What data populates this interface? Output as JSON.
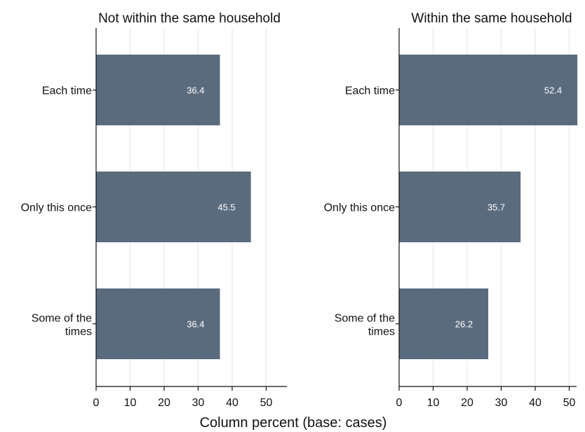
{
  "chart_data": {
    "type": "bar",
    "orientation": "horizontal",
    "categories": [
      "Each time",
      "Only this once",
      "Some of the times"
    ],
    "xlabel": "Column percent (base: cases)",
    "xlim": [
      0,
      56
    ],
    "xticks": [
      0,
      10,
      20,
      30,
      40,
      50
    ],
    "grid": true,
    "bar_color": "#5a6b7e",
    "panels": [
      {
        "title": "Not within the same household",
        "values": [
          36.4,
          45.5,
          36.4
        ],
        "labels": [
          "36.4",
          "45.5",
          "36.4"
        ]
      },
      {
        "title": "Within the same household",
        "values": [
          52.4,
          35.7,
          26.2
        ],
        "labels": [
          "52.4",
          "35.7",
          "26.2"
        ]
      }
    ]
  }
}
